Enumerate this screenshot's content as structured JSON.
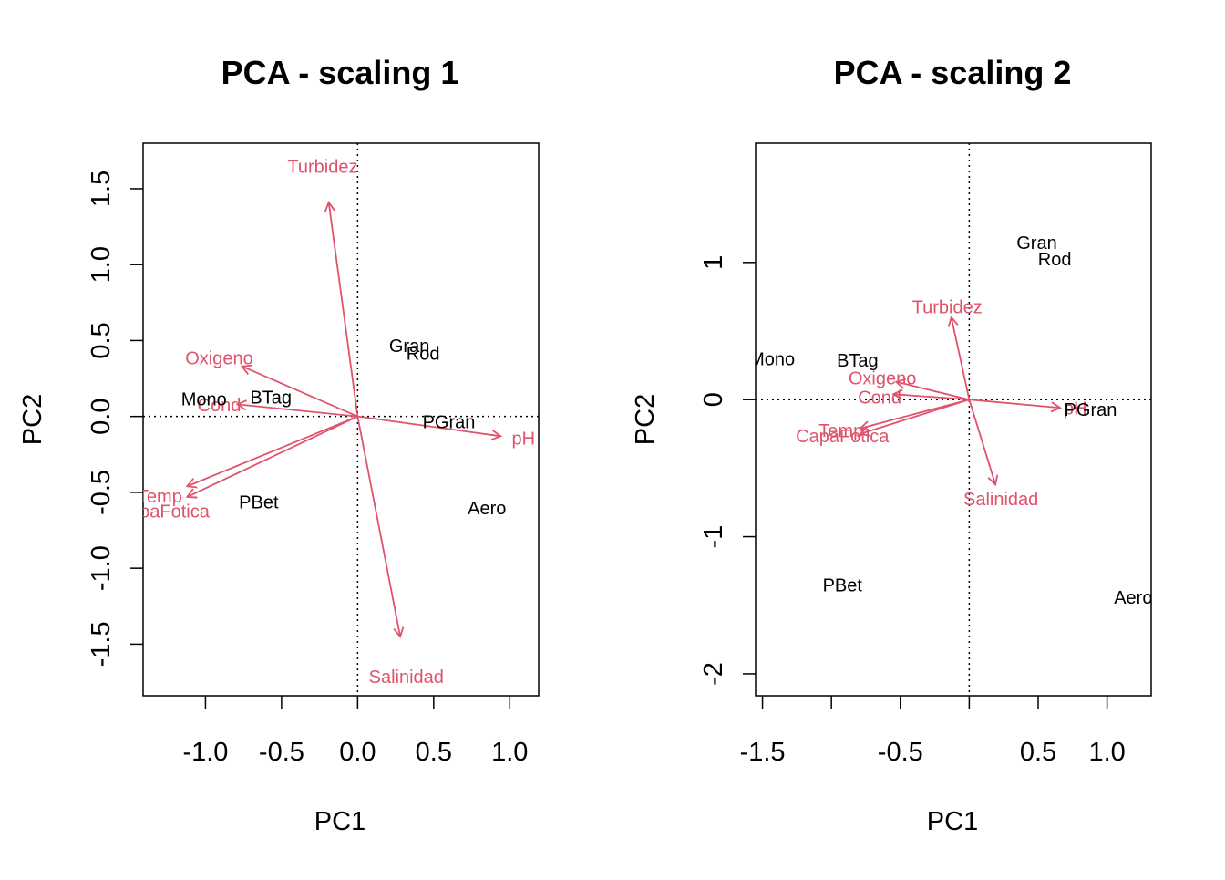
{
  "colors": {
    "sites": "#000000",
    "variables": "#DF536B",
    "frame": "#000000"
  },
  "chart_data": [
    {
      "type": "scatter",
      "plot_kind": "biplot",
      "title": "PCA - scaling 1",
      "xlabel": "PC1",
      "ylabel": "PC2",
      "xlim": [
        -1.41,
        1.19
      ],
      "ylim": [
        -1.84,
        1.8
      ],
      "xticks": [
        {
          "value": -1.0,
          "label": "-1.0"
        },
        {
          "value": -0.5,
          "label": "-0.5"
        },
        {
          "value": 0.0,
          "label": "0.0"
        },
        {
          "value": 0.5,
          "label": "0.5"
        },
        {
          "value": 1.0,
          "label": "1.0"
        }
      ],
      "yticks": [
        {
          "value": -1.5,
          "label": "-1.5"
        },
        {
          "value": -1.0,
          "label": "-1.0"
        },
        {
          "value": -0.5,
          "label": "-0.5"
        },
        {
          "value": 0.0,
          "label": "0.0"
        },
        {
          "value": 0.5,
          "label": "0.5"
        },
        {
          "value": 1.0,
          "label": "1.0"
        },
        {
          "value": 1.5,
          "label": "1.5"
        }
      ],
      "reference_lines": {
        "x": 0,
        "y": 0,
        "style": "dotted"
      },
      "sites": [
        {
          "label": "Gran",
          "x": 0.34,
          "y": 0.46
        },
        {
          "label": "Rod",
          "x": 0.43,
          "y": 0.41
        },
        {
          "label": "Mono",
          "x": -1.01,
          "y": 0.11
        },
        {
          "label": "BTag",
          "x": -0.57,
          "y": 0.12
        },
        {
          "label": "PGran",
          "x": 0.6,
          "y": -0.04
        },
        {
          "label": "PBet",
          "x": -0.65,
          "y": -0.57
        },
        {
          "label": "Aero",
          "x": 0.85,
          "y": -0.61
        }
      ],
      "variables": [
        {
          "label": "Turbidez",
          "x": -0.19,
          "y": 1.41,
          "label_x": -0.23,
          "label_y": 1.64
        },
        {
          "label": "Oxigeno",
          "x": -0.76,
          "y": 0.33,
          "label_x": -0.91,
          "label_y": 0.38
        },
        {
          "label": "Cond",
          "x": -0.79,
          "y": 0.08,
          "label_x": -0.91,
          "label_y": 0.07
        },
        {
          "label": "pH",
          "x": 0.94,
          "y": -0.13,
          "label_x": 1.09,
          "label_y": -0.15
        },
        {
          "label": "Temp",
          "x": -1.12,
          "y": -0.46,
          "label_x": -1.3,
          "label_y": -0.53
        },
        {
          "label": "CapaFotica",
          "x": -1.12,
          "y": -0.53,
          "label_x": -1.28,
          "label_y": -0.63
        },
        {
          "label": "Salinidad",
          "x": 0.28,
          "y": -1.45,
          "label_x": 0.32,
          "label_y": -1.72
        }
      ]
    },
    {
      "type": "scatter",
      "plot_kind": "biplot",
      "title": "PCA - scaling 2",
      "xlabel": "PC1",
      "ylabel": "PC2",
      "xlim": [
        -1.55,
        1.32
      ],
      "ylim": [
        -2.16,
        1.87
      ],
      "xticks": [
        {
          "value": -1.5,
          "label": "-1.5"
        },
        {
          "value": -1.0,
          "label": ""
        },
        {
          "value": -0.5,
          "label": "-0.5"
        },
        {
          "value": 0.0,
          "label": ""
        },
        {
          "value": 0.5,
          "label": "0.5"
        },
        {
          "value": 1.0,
          "label": "1.0"
        }
      ],
      "yticks": [
        {
          "value": -2,
          "label": "-2"
        },
        {
          "value": -1,
          "label": "-1"
        },
        {
          "value": 0,
          "label": "0"
        },
        {
          "value": 1,
          "label": "1"
        }
      ],
      "reference_lines": {
        "x": 0,
        "y": 0,
        "style": "dotted"
      },
      "sites": [
        {
          "label": "Gran",
          "x": 0.49,
          "y": 1.14
        },
        {
          "label": "Rod",
          "x": 0.62,
          "y": 1.02
        },
        {
          "label": "Mono",
          "x": -1.43,
          "y": 0.29
        },
        {
          "label": "BTag",
          "x": -0.81,
          "y": 0.28
        },
        {
          "label": "PGran",
          "x": 0.88,
          "y": -0.08
        },
        {
          "label": "PBet",
          "x": -0.92,
          "y": -1.36
        },
        {
          "label": "Aero",
          "x": 1.19,
          "y": -1.45
        }
      ],
      "variables": [
        {
          "label": "Turbidez",
          "x": -0.13,
          "y": 0.6,
          "label_x": -0.16,
          "label_y": 0.67
        },
        {
          "label": "Oxigeno",
          "x": -0.53,
          "y": 0.13,
          "label_x": -0.63,
          "label_y": 0.15
        },
        {
          "label": "Cond",
          "x": -0.55,
          "y": 0.04,
          "label_x": -0.65,
          "label_y": 0.01
        },
        {
          "label": "pH",
          "x": 0.66,
          "y": -0.06,
          "label_x": 0.77,
          "label_y": -0.07
        },
        {
          "label": "Temp",
          "x": -0.79,
          "y": -0.21,
          "label_x": -0.93,
          "label_y": -0.23
        },
        {
          "label": "CapaFotica",
          "x": -0.79,
          "y": -0.25,
          "label_x": -0.92,
          "label_y": -0.27
        },
        {
          "label": "Salinidad",
          "x": 0.19,
          "y": -0.62,
          "label_x": 0.23,
          "label_y": -0.73
        }
      ]
    }
  ]
}
